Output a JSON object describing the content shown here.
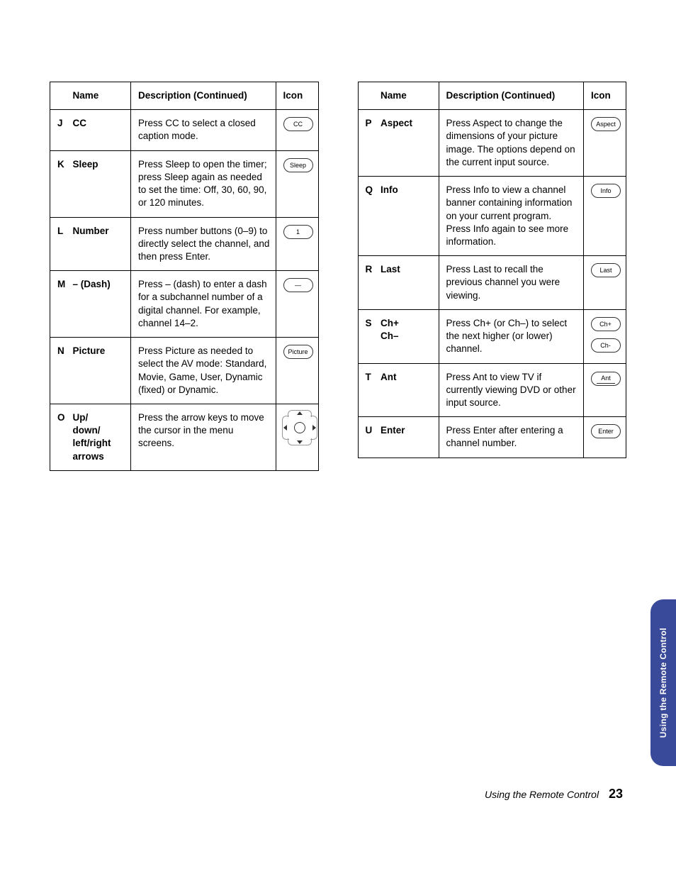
{
  "headers": {
    "name": "Name",
    "description": "Description (Continued)",
    "icon": "Icon"
  },
  "left_rows": [
    {
      "letter": "J",
      "name": "CC",
      "desc": "Press CC to select a closed caption mode.",
      "icon_label": "CC",
      "icon_type": "pill"
    },
    {
      "letter": "K",
      "name": "Sleep",
      "desc": "Press Sleep to open the timer; press Sleep again as needed to set the time: Off, 30, 60, 90, or 120 minutes.",
      "icon_label": "Sleep",
      "icon_type": "pill"
    },
    {
      "letter": "L",
      "name": "Number",
      "desc": "Press number buttons (0–9) to directly select the channel, and then press Enter.",
      "icon_label": "1",
      "icon_type": "pill"
    },
    {
      "letter": "M",
      "name": "– (Dash)",
      "desc": "Press – (dash) to enter a dash for a subchannel number of a digital channel. For example, channel 14–2.",
      "icon_label": "—",
      "icon_type": "pill"
    },
    {
      "letter": "N",
      "name": "Picture",
      "desc": "Press Picture as needed to select the AV mode: Standard, Movie, Game, User, Dynamic (fixed) or Dynamic.",
      "icon_label": "Picture",
      "icon_type": "pill"
    },
    {
      "letter": "O",
      "name": "Up/\ndown/\nleft/right arrows",
      "desc": "Press the arrow keys to move the cursor in the menu screens.",
      "icon_type": "dpad"
    }
  ],
  "right_rows": [
    {
      "letter": "P",
      "name": "Aspect",
      "desc": "Press Aspect to change the dimensions of your picture image. The options depend on the current input source.",
      "icon_label": "Aspect",
      "icon_type": "pill"
    },
    {
      "letter": "Q",
      "name": "Info",
      "desc": "Press Info to view a channel banner containing information on your current program. Press Info again to see more information.",
      "icon_label": "Info",
      "icon_type": "pill"
    },
    {
      "letter": "R",
      "name": "Last",
      "desc": "Press Last to recall the previous channel you were viewing.",
      "icon_label": "Last",
      "icon_type": "pill"
    },
    {
      "letter": "S",
      "name": "Ch+\nCh–",
      "desc": "Press Ch+ (or Ch–) to select the next higher (or lower) channel.",
      "icon_labels": [
        "Ch+",
        "Ch-"
      ],
      "icon_type": "stack"
    },
    {
      "letter": "T",
      "name": "Ant",
      "desc": "Press Ant to view TV if currently viewing DVD or other input source.",
      "icon_label": "Ant",
      "icon_type": "ant"
    },
    {
      "letter": "U",
      "name": "Enter",
      "desc": "Press Enter after entering a channel number.",
      "icon_label": "Enter",
      "icon_type": "pill"
    }
  ],
  "side_tab": "Using the Remote Control",
  "footer_text": "Using the Remote Control",
  "page_number": "23",
  "colors": {
    "side_tab_bg": "#3a4a9a",
    "border": "#000000",
    "text": "#000000"
  }
}
